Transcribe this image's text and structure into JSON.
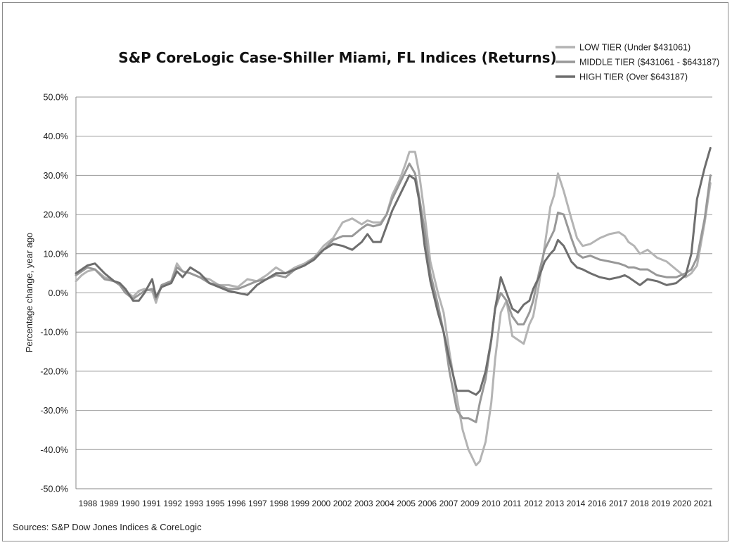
{
  "chart_data": {
    "type": "line",
    "title": "S&P CoreLogic Case-Shiller Miami, FL Indices (Returns)",
    "xlabel": "",
    "ylabel": "Percentage change, year ago",
    "source": "Sources: S&P Dow Jones Indices & CoreLogic",
    "x_tick_labels": [
      "1988",
      "1989",
      "1990",
      "1991",
      "1992",
      "1993",
      "1995",
      "1996",
      "1997",
      "1998",
      "1999",
      "2000",
      "2002",
      "2003",
      "2004",
      "2005",
      "2006",
      "2007",
      "2009",
      "2010",
      "2011",
      "2012",
      "2013",
      "2014",
      "2016",
      "2017",
      "2018",
      "2019",
      "2020",
      "2021"
    ],
    "x_range": [
      1988.0,
      2021.4
    ],
    "ylim": [
      -50,
      50
    ],
    "y_ticks": [
      50,
      40,
      30,
      20,
      10,
      0,
      -10,
      -20,
      -30,
      -40,
      -50
    ],
    "y_tick_labels": [
      "50.0%",
      "40.0%",
      "30.0%",
      "20.0%",
      "10.0%",
      "0.0%",
      "-10.0%",
      "-20.0%",
      "-30.0%",
      "-40.0%",
      "-50.0%"
    ],
    "grid": "horizontal",
    "legend_position": "top-right",
    "series": [
      {
        "name": "LOW TIER (Under $431061)",
        "color": "#b4b4b4",
        "x": [
          1988.0,
          1988.3,
          1988.6,
          1989.0,
          1989.5,
          1990.0,
          1990.3,
          1990.6,
          1991.0,
          1991.3,
          1991.6,
          1992.0,
          1992.2,
          1992.5,
          1993.0,
          1993.3,
          1993.6,
          1994.0,
          1994.5,
          1995.0,
          1995.5,
          1996.0,
          1996.5,
          1997.0,
          1997.5,
          1998.0,
          1998.5,
          1999.0,
          1999.5,
          2000.0,
          2000.5,
          2001.0,
          2001.5,
          2002.0,
          2002.5,
          2003.0,
          2003.3,
          2003.6,
          2004.0,
          2004.3,
          2004.6,
          2005.0,
          2005.3,
          2005.5,
          2005.8,
          2006.0,
          2006.3,
          2006.6,
          2007.0,
          2007.3,
          2007.6,
          2008.0,
          2008.3,
          2008.6,
          2009.0,
          2009.2,
          2009.5,
          2009.8,
          2010.0,
          2010.3,
          2010.6,
          2010.9,
          2011.2,
          2011.5,
          2011.8,
          2012.0,
          2012.3,
          2012.6,
          2012.9,
          2013.1,
          2013.3,
          2013.6,
          2014.0,
          2014.3,
          2014.6,
          2015.0,
          2015.5,
          2016.0,
          2016.5,
          2016.8,
          2017.0,
          2017.3,
          2017.6,
          2018.0,
          2018.5,
          2019.0,
          2019.5,
          2020.0,
          2020.3,
          2020.6,
          2021.0,
          2021.3
        ],
        "values": [
          3.0,
          4.5,
          5.5,
          6.0,
          4.0,
          3.0,
          2.5,
          0.5,
          -1.0,
          0.5,
          1.0,
          0.5,
          -2.5,
          2.0,
          3.0,
          7.5,
          5.5,
          5.0,
          4.0,
          3.5,
          2.0,
          2.0,
          1.5,
          3.5,
          3.0,
          4.5,
          6.5,
          5.0,
          6.5,
          7.5,
          9.0,
          12.0,
          14.0,
          18.0,
          19.0,
          17.5,
          18.5,
          18.0,
          18.0,
          20.0,
          25.0,
          29.0,
          33.0,
          36.0,
          36.0,
          31.0,
          20.0,
          8.0,
          0.0,
          -5.0,
          -15.0,
          -27.0,
          -35.0,
          -40.0,
          -44.0,
          -43.0,
          -38.0,
          -28.0,
          -17.0,
          -5.0,
          -2.0,
          -11.0,
          -12.0,
          -13.0,
          -8.0,
          -6.0,
          2.0,
          12.0,
          22.0,
          25.0,
          30.5,
          26.0,
          19.0,
          14.0,
          12.0,
          12.5,
          14.0,
          15.0,
          15.5,
          14.5,
          13.0,
          12.0,
          10.0,
          11.0,
          9.0,
          8.0,
          6.0,
          4.0,
          5.0,
          7.0,
          18.0,
          28.0
        ]
      },
      {
        "name": "MIDDLE TIER ($431061 - $643187)",
        "color": "#989898",
        "x": [
          1988.0,
          1988.3,
          1988.6,
          1989.0,
          1989.5,
          1990.0,
          1990.3,
          1990.6,
          1991.0,
          1991.3,
          1991.6,
          1992.0,
          1992.2,
          1992.5,
          1993.0,
          1993.3,
          1993.6,
          1994.0,
          1994.5,
          1995.0,
          1995.5,
          1996.0,
          1996.5,
          1997.0,
          1997.5,
          1998.0,
          1998.5,
          1999.0,
          1999.5,
          2000.0,
          2000.5,
          2001.0,
          2001.5,
          2002.0,
          2002.5,
          2003.0,
          2003.3,
          2003.6,
          2004.0,
          2004.3,
          2004.6,
          2005.0,
          2005.3,
          2005.5,
          2005.8,
          2006.0,
          2006.3,
          2006.6,
          2007.0,
          2007.3,
          2007.6,
          2008.0,
          2008.3,
          2008.6,
          2009.0,
          2009.2,
          2009.5,
          2009.8,
          2010.0,
          2010.3,
          2010.6,
          2010.9,
          2011.2,
          2011.5,
          2011.8,
          2012.0,
          2012.3,
          2012.6,
          2012.9,
          2013.1,
          2013.3,
          2013.6,
          2014.0,
          2014.3,
          2014.6,
          2015.0,
          2015.5,
          2016.0,
          2016.5,
          2016.8,
          2017.0,
          2017.3,
          2017.6,
          2018.0,
          2018.5,
          2019.0,
          2019.5,
          2020.0,
          2020.3,
          2020.6,
          2021.0,
          2021.3
        ],
        "values": [
          4.5,
          5.5,
          6.5,
          6.0,
          3.5,
          3.0,
          2.0,
          0.0,
          -1.5,
          -0.5,
          0.5,
          1.0,
          -1.5,
          2.0,
          3.0,
          6.5,
          5.5,
          5.0,
          4.0,
          2.5,
          2.0,
          1.0,
          1.0,
          2.0,
          3.0,
          3.5,
          4.5,
          4.0,
          6.0,
          7.0,
          9.0,
          11.0,
          13.5,
          14.5,
          14.5,
          16.5,
          17.5,
          17.0,
          17.5,
          20.0,
          24.0,
          28.0,
          31.0,
          33.0,
          30.5,
          25.0,
          16.0,
          5.0,
          -3.0,
          -10.0,
          -20.0,
          -30.0,
          -32.0,
          -32.0,
          -33.0,
          -28.0,
          -22.0,
          -12.0,
          -4.0,
          0.0,
          -2.0,
          -6.0,
          -8.0,
          -8.0,
          -5.0,
          -2.0,
          5.0,
          11.0,
          14.0,
          16.0,
          20.5,
          20.0,
          14.0,
          10.0,
          9.0,
          9.5,
          8.5,
          8.0,
          7.5,
          7.0,
          6.5,
          6.5,
          6.0,
          6.0,
          4.5,
          4.0,
          4.0,
          5.0,
          6.0,
          9.0,
          19.0,
          30.0
        ]
      },
      {
        "name": "HIGH TIER (Over $643187)",
        "color": "#6e6e6e",
        "x": [
          1988.0,
          1988.3,
          1988.6,
          1989.0,
          1989.5,
          1990.0,
          1990.3,
          1990.6,
          1991.0,
          1991.3,
          1991.6,
          1992.0,
          1992.2,
          1992.5,
          1993.0,
          1993.3,
          1993.6,
          1994.0,
          1994.5,
          1995.0,
          1995.5,
          1996.0,
          1996.5,
          1997.0,
          1997.5,
          1998.0,
          1998.5,
          1999.0,
          1999.5,
          2000.0,
          2000.5,
          2001.0,
          2001.5,
          2002.0,
          2002.5,
          2003.0,
          2003.3,
          2003.6,
          2004.0,
          2004.3,
          2004.6,
          2005.0,
          2005.3,
          2005.5,
          2005.8,
          2006.0,
          2006.3,
          2006.6,
          2007.0,
          2007.3,
          2007.6,
          2008.0,
          2008.3,
          2008.6,
          2009.0,
          2009.2,
          2009.5,
          2009.8,
          2010.0,
          2010.3,
          2010.6,
          2010.9,
          2011.2,
          2011.5,
          2011.8,
          2012.0,
          2012.3,
          2012.6,
          2012.9,
          2013.1,
          2013.3,
          2013.6,
          2014.0,
          2014.3,
          2014.6,
          2015.0,
          2015.5,
          2016.0,
          2016.5,
          2016.8,
          2017.0,
          2017.3,
          2017.6,
          2018.0,
          2018.5,
          2019.0,
          2019.5,
          2020.0,
          2020.3,
          2020.6,
          2021.0,
          2021.3
        ],
        "values": [
          5.0,
          6.0,
          7.0,
          7.5,
          5.0,
          3.0,
          2.5,
          1.0,
          -2.0,
          -2.0,
          0.0,
          3.5,
          -1.0,
          1.5,
          2.5,
          5.5,
          4.0,
          6.5,
          5.0,
          2.5,
          1.5,
          0.5,
          0.0,
          -0.5,
          2.0,
          3.5,
          5.0,
          5.0,
          6.0,
          7.0,
          8.5,
          11.0,
          12.5,
          12.0,
          11.0,
          13.0,
          15.0,
          13.0,
          13.0,
          17.0,
          21.0,
          25.0,
          28.0,
          30.0,
          29.0,
          24.0,
          12.0,
          3.0,
          -5.0,
          -10.0,
          -17.0,
          -25.0,
          -25.0,
          -25.0,
          -26.0,
          -25.0,
          -20.0,
          -12.0,
          -4.0,
          4.0,
          0.0,
          -4.0,
          -5.0,
          -3.0,
          -2.0,
          1.0,
          4.0,
          8.0,
          10.0,
          11.0,
          13.5,
          12.0,
          8.0,
          6.5,
          6.0,
          5.0,
          4.0,
          3.5,
          4.0,
          4.5,
          4.0,
          3.0,
          2.0,
          3.5,
          3.0,
          2.0,
          2.5,
          4.5,
          10.0,
          24.0,
          32.0,
          37.0
        ]
      }
    ]
  }
}
